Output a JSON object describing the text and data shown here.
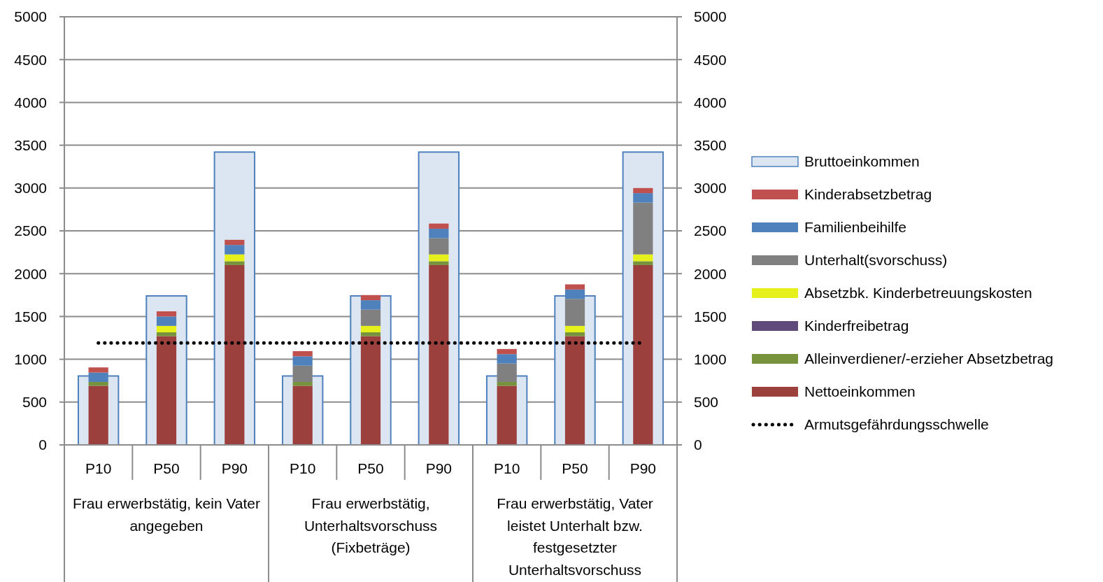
{
  "chart_data": {
    "type": "bar",
    "stacked": true,
    "legend": "right",
    "grid": "y",
    "categories": [
      "P10",
      "P50",
      "P90",
      "P10",
      "P50",
      "P90",
      "P10",
      "P50",
      "P90"
    ],
    "annotations": [
      "Frau erwerbstätig, kein Vater angegeben",
      "Frau erwerbstätig, Unterhaltsvorschuss (Fixbeträge)",
      "Frau erwerbstätig, Vater leistet Unterhalt bzw. festgesetzter Unterhaltsvorschuss"
    ],
    "ylim": [
      0,
      5000
    ],
    "yticks": [
      0,
      500,
      1000,
      1500,
      2000,
      2500,
      3000,
      3500,
      4000,
      4500,
      5000
    ],
    "y2lim": [
      0,
      5000
    ],
    "y2ticks": [
      0,
      500,
      1000,
      1500,
      2000,
      2500,
      3000,
      3500,
      4000,
      4500,
      5000
    ],
    "series": [
      {
        "name": "Bruttoeinkommen",
        "type": "bar",
        "axis": "y2",
        "color": "#dce6f2",
        "values": [
          805,
          1740,
          3420,
          805,
          1740,
          3420,
          805,
          1740,
          3420
        ]
      },
      {
        "name": "Nettoeinkommen",
        "color": "#9c403e",
        "values": [
          690,
          1270,
          2100,
          690,
          1270,
          2100,
          690,
          1270,
          2100
        ]
      },
      {
        "name": "Alleinverdiener/-erzieher Absetzbetrag",
        "color": "#77933c",
        "values": [
          45,
          45,
          45,
          45,
          45,
          45,
          45,
          45,
          45
        ]
      },
      {
        "name": "Kinderfreibetrag",
        "color": "#604a7b",
        "values": [
          0,
          0,
          0,
          0,
          0,
          0,
          0,
          0,
          0
        ]
      },
      {
        "name": "Absetzbk. Kinderbetreuungskosten",
        "color": "#e6f01a",
        "values": [
          0,
          75,
          80,
          0,
          75,
          80,
          0,
          75,
          80
        ]
      },
      {
        "name": "Unterhalt(svorschuss)",
        "color": "#808080",
        "values": [
          0,
          0,
          0,
          190,
          190,
          190,
          215,
          315,
          605
        ]
      },
      {
        "name": "Familienbeihilfe",
        "color": "#4f81bd",
        "values": [
          110,
          110,
          110,
          110,
          110,
          110,
          110,
          110,
          110
        ]
      },
      {
        "name": "Kinderabsetzbetrag",
        "color": "#c0504d",
        "values": [
          60,
          60,
          60,
          60,
          60,
          60,
          60,
          60,
          60
        ]
      },
      {
        "name": "Armutsgefährdungsschwelle",
        "type": "line",
        "line_style": "dotted",
        "marker": "none",
        "color": "#000000",
        "values": [
          1190,
          1190,
          1190,
          1190,
          1190,
          1190,
          1190,
          1190,
          1190
        ]
      }
    ]
  }
}
